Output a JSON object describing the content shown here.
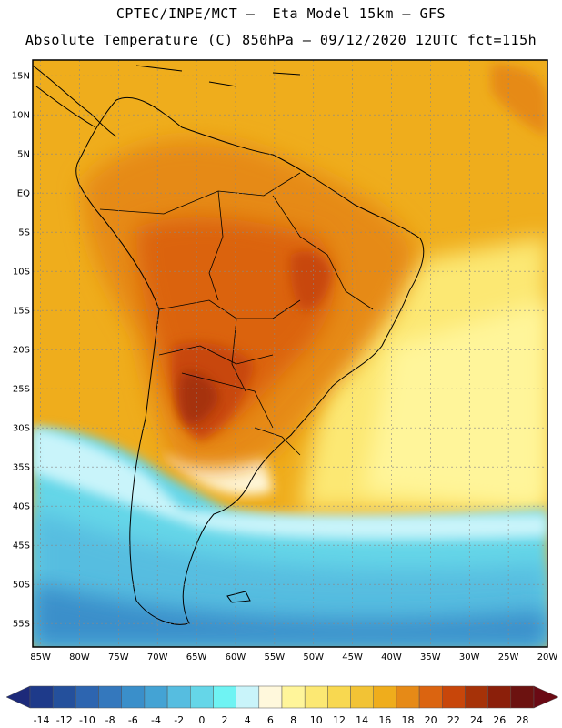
{
  "header": {
    "title_line1": "CPTEC/INPE/MCT –  Eta Model 15km – GFS",
    "title_line2": "Absolute Temperature (C) 850hPa – 09/12/2020 12UTC fct=115h"
  },
  "map": {
    "lat_labels": [
      "15N",
      "10N",
      "5N",
      "EQ",
      "5S",
      "10S",
      "15S",
      "20S",
      "25S",
      "30S",
      "35S",
      "40S",
      "45S",
      "50S",
      "55S"
    ],
    "lon_labels": [
      "85W",
      "80W",
      "75W",
      "70W",
      "65W",
      "60W",
      "55W",
      "50W",
      "45W",
      "40W",
      "35W",
      "30W",
      "25W",
      "20W"
    ],
    "lat_range": [
      17,
      -58
    ],
    "lon_range": [
      -86,
      -20
    ]
  },
  "legend": {
    "ticks": [
      "-14",
      "-12",
      "-10",
      "-8",
      "-6",
      "-4",
      "-2",
      "0",
      "2",
      "4",
      "6",
      "8",
      "10",
      "12",
      "14",
      "16",
      "18",
      "20",
      "22",
      "24",
      "26",
      "28"
    ],
    "colors": [
      "#1e3a8a",
      "#24509c",
      "#2d65b0",
      "#3478bd",
      "#3a8fca",
      "#44a3d4",
      "#56bde0",
      "#65d6e8",
      "#6ff3f3",
      "#c9f4fa",
      "#fff8dc",
      "#fff59a",
      "#fce873",
      "#f8d850",
      "#f2c335",
      "#efad1c",
      "#e68a17",
      "#db6410",
      "#c8460a",
      "#a63208",
      "#8b1f0a",
      "#6c1210"
    ],
    "under_color": "#1d2a7a",
    "over_color": "#6a0a14"
  }
}
